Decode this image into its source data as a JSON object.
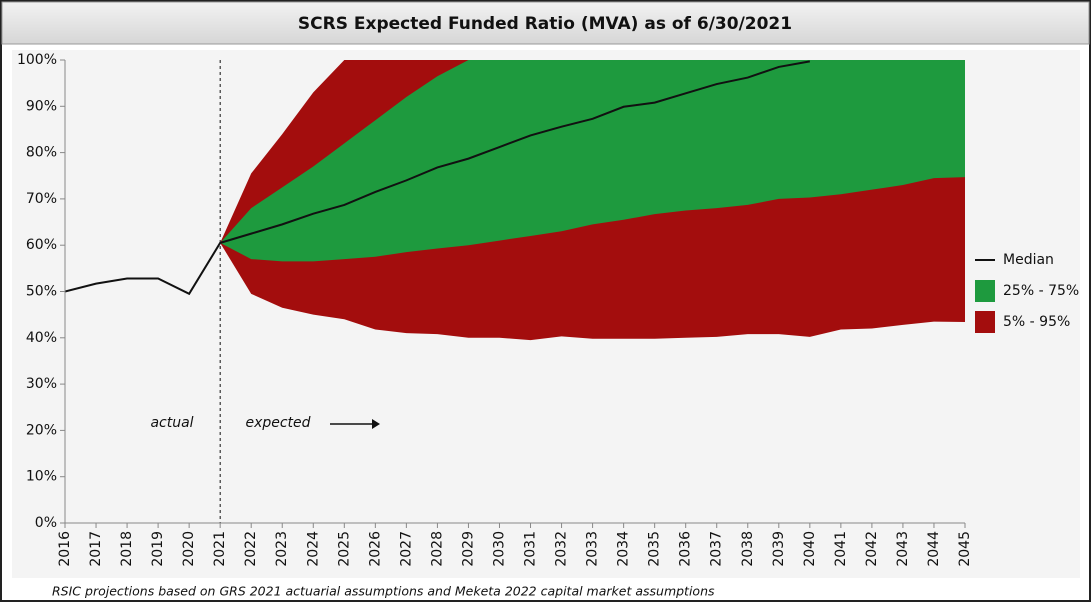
{
  "chart_data": {
    "type": "fan",
    "title": "SCRS Expected Funded Ratio (MVA) as of 6/30/2021",
    "x": [
      2016,
      2017,
      2018,
      2019,
      2020,
      2021,
      2022,
      2023,
      2024,
      2025,
      2026,
      2027,
      2028,
      2029,
      2030,
      2031,
      2032,
      2033,
      2034,
      2035,
      2036,
      2037,
      2038,
      2039,
      2040,
      2041,
      2042,
      2043,
      2044,
      2045
    ],
    "xlim": [
      2016,
      2045
    ],
    "xticks": [
      2016,
      2017,
      2018,
      2019,
      2020,
      2021,
      2022,
      2023,
      2024,
      2025,
      2026,
      2027,
      2028,
      2029,
      2030,
      2031,
      2032,
      2033,
      2034,
      2035,
      2036,
      2037,
      2038,
      2039,
      2040,
      2041,
      2042,
      2043,
      2044,
      2045
    ],
    "ylim": [
      0,
      100
    ],
    "yticks": [
      {
        "value": 0,
        "label": "0%"
      },
      {
        "value": 10,
        "label": "10%"
      },
      {
        "value": 20,
        "label": "20%"
      },
      {
        "value": 30,
        "label": "30%"
      },
      {
        "value": 40,
        "label": "40%"
      },
      {
        "value": 50,
        "label": "50%"
      },
      {
        "value": 60,
        "label": "60%"
      },
      {
        "value": 70,
        "label": "70%"
      },
      {
        "value": 80,
        "label": "80%"
      },
      {
        "value": 90,
        "label": "90%"
      },
      {
        "value": 100,
        "label": "100%"
      }
    ],
    "series": [
      {
        "name": "Median",
        "color": "#111111",
        "values": [
          50,
          51.7,
          52.8,
          52.8,
          49.5,
          60.5,
          62.5,
          64.5,
          66.8,
          68.7,
          71.5,
          74,
          76.8,
          78.7,
          81.2,
          83.7,
          85.6,
          87.3,
          89.9,
          90.8,
          92.8,
          94.8,
          96.2,
          98.5,
          99.7,
          null,
          null,
          null,
          null,
          null
        ]
      },
      {
        "name": "25% - 75%",
        "color": "#1e9a3e",
        "lower": [
          null,
          null,
          null,
          null,
          null,
          60.5,
          57,
          56.5,
          56.5,
          57,
          57.5,
          58.5,
          59.3,
          60,
          61,
          62,
          63,
          64.5,
          65.5,
          66.7,
          67.5,
          68,
          68.7,
          70,
          70.3,
          71,
          72,
          73,
          74.5,
          74.7
        ],
        "upper": [
          null,
          null,
          null,
          null,
          null,
          60.5,
          68,
          72.5,
          77,
          82,
          87,
          92,
          96.5,
          100,
          100,
          100,
          100,
          100,
          100,
          100,
          100,
          100,
          100,
          100,
          100,
          100,
          100,
          100,
          100,
          100
        ]
      },
      {
        "name": "5% - 95%",
        "color": "#a30d0d",
        "lower": [
          null,
          null,
          null,
          null,
          null,
          60.5,
          49.5,
          46.5,
          45,
          44,
          41.8,
          41,
          40.8,
          40,
          40,
          39.5,
          40.3,
          39.8,
          39.8,
          39.8,
          40,
          40.2,
          40.8,
          40.8,
          40.2,
          41.8,
          42,
          42.8,
          43.5,
          43.4
        ],
        "upper": [
          null,
          null,
          null,
          null,
          null,
          60.5,
          75.5,
          84,
          93,
          100,
          100,
          100,
          100,
          100,
          100,
          100,
          100,
          100,
          100,
          100,
          100,
          100,
          100,
          100,
          100,
          100,
          100,
          100,
          100,
          100
        ]
      }
    ],
    "divider_x": 2021,
    "annotations": [
      "actual",
      "expected"
    ],
    "footnote": "RSIC projections based on GRS 2021 actuarial assumptions and Meketa 2022 capital market assumptions",
    "legend": "right"
  }
}
